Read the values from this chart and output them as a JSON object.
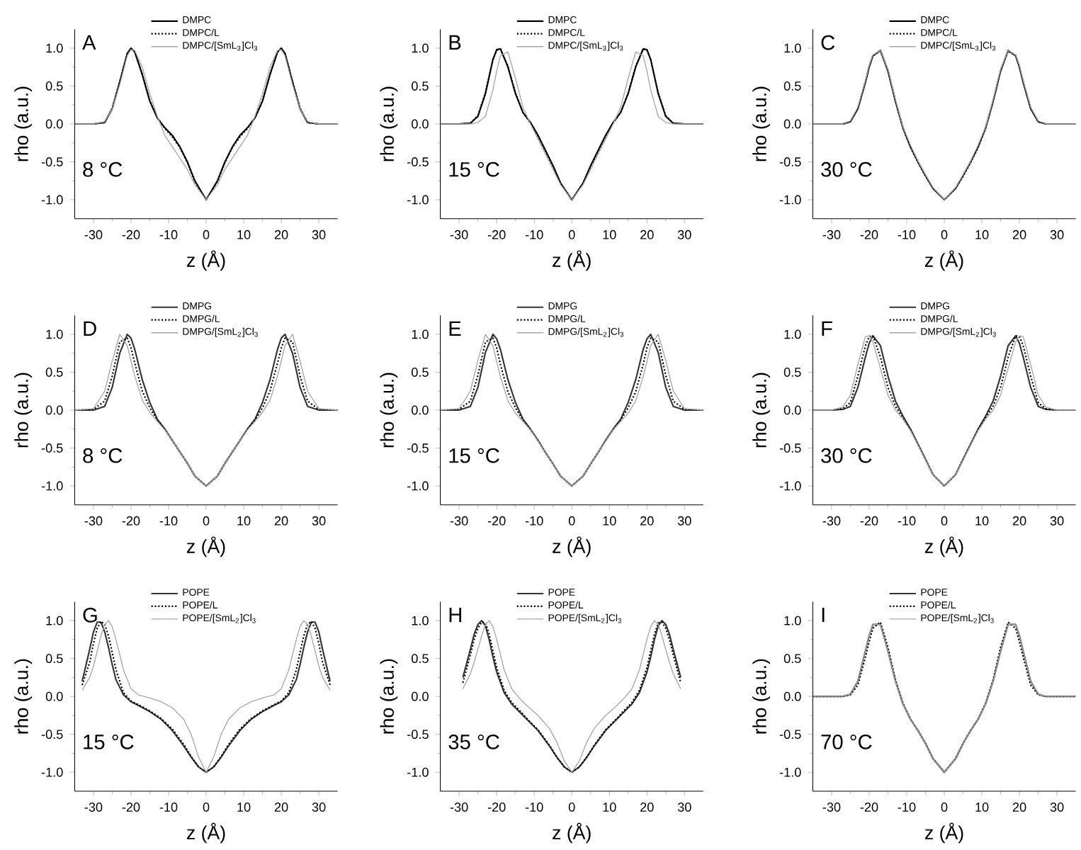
{
  "chart_data": [
    {
      "type": "line",
      "xlabel": "z (Å)",
      "ylabel": "rho (a.u.)",
      "annotations": [
        "A",
        "8 °C"
      ],
      "legend": "top",
      "xlim": [
        -35,
        35
      ],
      "ylim": [
        -1.25,
        1.25
      ],
      "xticks": [
        -30,
        -20,
        -10,
        0,
        10,
        20,
        30
      ],
      "yticks": [
        {
          "value": -1,
          "label": "-1.0"
        },
        {
          "value": -0.5,
          "label": "-0.5"
        },
        {
          "value": 0,
          "label": "0.0"
        },
        {
          "value": 0.5,
          "label": "0.5"
        },
        {
          "value": 1,
          "label": "1.0"
        }
      ],
      "x": [
        -35,
        -30,
        -27,
        -25,
        -23,
        -21,
        -20,
        -19,
        -17,
        -15,
        -13,
        -11,
        -9,
        -7,
        -5,
        -3,
        0,
        3,
        5,
        7,
        9,
        11,
        13,
        15,
        17,
        19,
        20,
        21,
        23,
        25,
        27,
        30,
        35
      ],
      "series": [
        {
          "name": "DMPC",
          "color": "#000000",
          "line_style": "solid",
          "values": [
            0,
            0,
            0.02,
            0.2,
            0.55,
            0.93,
            1.0,
            0.95,
            0.65,
            0.3,
            0.08,
            -0.05,
            -0.15,
            -0.3,
            -0.5,
            -0.75,
            -1.0,
            -0.75,
            -0.5,
            -0.3,
            -0.15,
            -0.05,
            0.08,
            0.3,
            0.65,
            0.95,
            1.0,
            0.93,
            0.55,
            0.2,
            0.02,
            0,
            0
          ]
        },
        {
          "name": "DMPC/L",
          "color": "#000000",
          "line_style": "dotted",
          "values": [
            0,
            0,
            0.02,
            0.21,
            0.56,
            0.93,
            0.99,
            0.95,
            0.66,
            0.31,
            0.08,
            -0.06,
            -0.17,
            -0.31,
            -0.51,
            -0.76,
            -1.0,
            -0.76,
            -0.51,
            -0.31,
            -0.17,
            -0.06,
            0.08,
            0.31,
            0.66,
            0.95,
            0.99,
            0.93,
            0.56,
            0.21,
            0.02,
            0,
            0
          ]
        },
        {
          "name": "DMPC/[SmL$_{3}$]Cl$_{3}$",
          "color": "#a6a6a6",
          "line_style": "solid",
          "values": [
            0,
            0,
            0.03,
            0.2,
            0.52,
            0.9,
            0.98,
            0.97,
            0.75,
            0.4,
            0.1,
            -0.15,
            -0.3,
            -0.45,
            -0.6,
            -0.8,
            -1.0,
            -0.8,
            -0.6,
            -0.45,
            -0.3,
            -0.15,
            0.1,
            0.4,
            0.75,
            0.97,
            0.98,
            0.9,
            0.52,
            0.2,
            0.03,
            0,
            0
          ]
        }
      ]
    },
    {
      "type": "line",
      "xlabel": "z (Å)",
      "ylabel": "rho (a.u.)",
      "annotations": [
        "B",
        "15 °C"
      ],
      "legend": "top",
      "xlim": [
        -35,
        35
      ],
      "ylim": [
        -1.25,
        1.25
      ],
      "xticks": [
        -30,
        -20,
        -10,
        0,
        10,
        20,
        30
      ],
      "yticks": [
        {
          "value": -1,
          "label": "-1.0"
        },
        {
          "value": -0.5,
          "label": "-0.5"
        },
        {
          "value": 0,
          "label": "0.0"
        },
        {
          "value": 0.5,
          "label": "0.5"
        },
        {
          "value": 1,
          "label": "1.0"
        }
      ],
      "x": [
        -35,
        -30,
        -27,
        -25,
        -23,
        -21,
        -20,
        -19,
        -17,
        -15,
        -13,
        -11,
        -9,
        -7,
        -5,
        -3,
        0,
        3,
        5,
        7,
        9,
        11,
        13,
        15,
        17,
        19,
        20,
        21,
        23,
        25,
        27,
        30,
        35
      ],
      "series": [
        {
          "name": "DMPC",
          "color": "#000000",
          "line_style": "solid",
          "values": [
            0,
            0,
            0.01,
            0.1,
            0.4,
            0.85,
            0.98,
            0.99,
            0.75,
            0.4,
            0.15,
            0.02,
            -0.15,
            -0.35,
            -0.55,
            -0.78,
            -1.0,
            -0.78,
            -0.55,
            -0.35,
            -0.15,
            0.02,
            0.15,
            0.4,
            0.75,
            0.99,
            0.98,
            0.85,
            0.4,
            0.1,
            0.01,
            0,
            0
          ]
        },
        {
          "name": "DMPC/L",
          "color": "#000000",
          "line_style": "dotted",
          "values": [
            0,
            0,
            0.01,
            0.11,
            0.41,
            0.85,
            0.97,
            0.99,
            0.76,
            0.41,
            0.15,
            0.01,
            -0.16,
            -0.36,
            -0.56,
            -0.78,
            -1.0,
            -0.78,
            -0.56,
            -0.36,
            -0.16,
            0.01,
            0.15,
            0.41,
            0.76,
            0.99,
            0.97,
            0.85,
            0.41,
            0.11,
            0.01,
            0,
            0
          ]
        },
        {
          "name": "DMPC/[SmL$_{3}$]Cl$_{3}$",
          "color": "#a6a6a6",
          "line_style": "solid",
          "values": [
            0,
            0,
            0,
            0.02,
            0.1,
            0.45,
            0.7,
            0.9,
            0.95,
            0.6,
            0.22,
            0.0,
            -0.2,
            -0.4,
            -0.6,
            -0.8,
            -1.0,
            -0.8,
            -0.6,
            -0.4,
            -0.2,
            0.0,
            0.22,
            0.6,
            0.95,
            0.9,
            0.7,
            0.45,
            0.1,
            0.02,
            0,
            0,
            0
          ]
        }
      ]
    },
    {
      "type": "line",
      "xlabel": "z (Å)",
      "ylabel": "rho (a.u.)",
      "annotations": [
        "C",
        "30 °C"
      ],
      "legend": "top",
      "xlim": [
        -35,
        35
      ],
      "ylim": [
        -1.25,
        1.25
      ],
      "xticks": [
        -30,
        -20,
        -10,
        0,
        10,
        20,
        30
      ],
      "yticks": [
        {
          "value": -1,
          "label": "-1.0"
        },
        {
          "value": -0.5,
          "label": "-0.5"
        },
        {
          "value": 0,
          "label": "0.0"
        },
        {
          "value": 0.5,
          "label": "0.5"
        },
        {
          "value": 1,
          "label": "1.0"
        }
      ],
      "x": [
        -35,
        -30,
        -27,
        -25,
        -23,
        -21,
        -20,
        -19,
        -17,
        -15,
        -13,
        -11,
        -9,
        -7,
        -5,
        -3,
        0,
        3,
        5,
        7,
        9,
        11,
        13,
        15,
        17,
        19,
        20,
        21,
        23,
        25,
        27,
        30,
        35
      ],
      "series": [
        {
          "name": "DMPC",
          "color": "#000000",
          "line_style": "solid",
          "values": [
            0,
            0,
            0,
            0.03,
            0.2,
            0.55,
            0.75,
            0.9,
            0.97,
            0.7,
            0.3,
            -0.05,
            -0.3,
            -0.5,
            -0.68,
            -0.85,
            -1.0,
            -0.85,
            -0.68,
            -0.5,
            -0.3,
            -0.05,
            0.3,
            0.7,
            0.97,
            0.9,
            0.75,
            0.55,
            0.2,
            0.03,
            0,
            0,
            0
          ]
        },
        {
          "name": "DMPC/L",
          "color": "#000000",
          "line_style": "dotted",
          "values": [
            0,
            0,
            0,
            0.03,
            0.21,
            0.56,
            0.76,
            0.9,
            0.96,
            0.71,
            0.3,
            -0.06,
            -0.31,
            -0.51,
            -0.69,
            -0.85,
            -1.0,
            -0.85,
            -0.69,
            -0.51,
            -0.31,
            -0.06,
            0.3,
            0.71,
            0.96,
            0.9,
            0.76,
            0.56,
            0.21,
            0.03,
            0,
            0,
            0
          ]
        },
        {
          "name": "DMPC/[SmL$_{3}$]Cl$_{3}$",
          "color": "#a6a6a6",
          "line_style": "solid",
          "values": [
            0,
            0,
            0,
            0.04,
            0.22,
            0.57,
            0.77,
            0.91,
            0.97,
            0.72,
            0.32,
            -0.04,
            -0.28,
            -0.49,
            -0.67,
            -0.84,
            -1.0,
            -0.84,
            -0.67,
            -0.49,
            -0.28,
            -0.04,
            0.32,
            0.72,
            0.97,
            0.91,
            0.77,
            0.57,
            0.22,
            0.04,
            0,
            0,
            0
          ]
        }
      ]
    },
    {
      "type": "line",
      "xlabel": "z (Å)",
      "ylabel": "rho (a.u.)",
      "annotations": [
        "D",
        "8 °C"
      ],
      "legend": "top",
      "xlim": [
        -35,
        35
      ],
      "ylim": [
        -1.25,
        1.25
      ],
      "xticks": [
        -30,
        -20,
        -10,
        0,
        10,
        20,
        30
      ],
      "yticks": [
        {
          "value": -1,
          "label": "-1.0"
        },
        {
          "value": -0.5,
          "label": "-0.5"
        },
        {
          "value": 0,
          "label": "0.0"
        },
        {
          "value": 0.5,
          "label": "0.5"
        },
        {
          "value": 1,
          "label": "1.0"
        }
      ],
      "x": [
        -35,
        -30,
        -27,
        -25,
        -23,
        -21,
        -20,
        -19,
        -17,
        -15,
        -13,
        -11,
        -9,
        -7,
        -5,
        -3,
        0,
        3,
        5,
        7,
        9,
        11,
        13,
        15,
        17,
        19,
        20,
        21,
        23,
        25,
        27,
        30,
        35
      ],
      "series": [
        {
          "name": "DMPG",
          "color": "#333333",
          "line_style": "solid",
          "values": [
            0,
            0,
            0.05,
            0.3,
            0.75,
            1.0,
            0.95,
            0.8,
            0.4,
            0.1,
            -0.12,
            -0.25,
            -0.4,
            -0.55,
            -0.7,
            -0.87,
            -1.0,
            -0.87,
            -0.7,
            -0.55,
            -0.4,
            -0.25,
            -0.12,
            0.1,
            0.4,
            0.8,
            0.95,
            1.0,
            0.75,
            0.3,
            0.05,
            0,
            0
          ]
        },
        {
          "name": "DMPG/L",
          "color": "#000000",
          "line_style": "dotted",
          "values": [
            0,
            0.01,
            0.12,
            0.45,
            0.9,
            0.95,
            0.82,
            0.62,
            0.25,
            0.03,
            -0.13,
            -0.25,
            -0.4,
            -0.55,
            -0.7,
            -0.87,
            -1.0,
            -0.87,
            -0.7,
            -0.55,
            -0.4,
            -0.25,
            -0.13,
            0.03,
            0.25,
            0.62,
            0.82,
            0.95,
            0.9,
            0.45,
            0.12,
            0.01,
            0
          ]
        },
        {
          "name": "DMPG/[SmL$_{2}$]Cl$_{3}$",
          "color": "#a6a6a6",
          "line_style": "solid",
          "values": [
            0,
            0.02,
            0.25,
            0.65,
            1.0,
            0.85,
            0.65,
            0.45,
            0.13,
            -0.03,
            -0.15,
            -0.26,
            -0.4,
            -0.55,
            -0.7,
            -0.87,
            -1.0,
            -0.87,
            -0.7,
            -0.55,
            -0.4,
            -0.26,
            -0.15,
            -0.03,
            0.13,
            0.45,
            0.65,
            0.85,
            1.0,
            0.65,
            0.25,
            0.02,
            0
          ]
        }
      ]
    },
    {
      "type": "line",
      "xlabel": "z (Å)",
      "ylabel": "rho (a.u.)",
      "annotations": [
        "E",
        "15 °C"
      ],
      "legend": "top",
      "xlim": [
        -35,
        35
      ],
      "ylim": [
        -1.25,
        1.25
      ],
      "xticks": [
        -30,
        -20,
        -10,
        0,
        10,
        20,
        30
      ],
      "yticks": [
        {
          "value": -1,
          "label": "-1.0"
        },
        {
          "value": -0.5,
          "label": "-0.5"
        },
        {
          "value": 0,
          "label": "0.0"
        },
        {
          "value": 0.5,
          "label": "0.5"
        },
        {
          "value": 1,
          "label": "1.0"
        }
      ],
      "x": [
        -35,
        -30,
        -27,
        -25,
        -23,
        -21,
        -20,
        -19,
        -17,
        -15,
        -13,
        -11,
        -9,
        -7,
        -5,
        -3,
        0,
        3,
        5,
        7,
        9,
        11,
        13,
        15,
        17,
        19,
        20,
        21,
        23,
        25,
        27,
        30,
        35
      ],
      "series": [
        {
          "name": "DMPG",
          "color": "#333333",
          "line_style": "solid",
          "values": [
            0,
            0,
            0.05,
            0.3,
            0.76,
            1.0,
            0.94,
            0.8,
            0.4,
            0.1,
            -0.12,
            -0.25,
            -0.4,
            -0.56,
            -0.71,
            -0.87,
            -1.0,
            -0.87,
            -0.71,
            -0.56,
            -0.4,
            -0.25,
            -0.12,
            0.1,
            0.4,
            0.8,
            0.94,
            1.0,
            0.76,
            0.3,
            0.05,
            0,
            0
          ]
        },
        {
          "name": "DMPG/L",
          "color": "#000000",
          "line_style": "dotted",
          "values": [
            0,
            0.01,
            0.12,
            0.46,
            0.9,
            0.95,
            0.82,
            0.6,
            0.24,
            0.03,
            -0.13,
            -0.26,
            -0.4,
            -0.56,
            -0.71,
            -0.87,
            -1.0,
            -0.87,
            -0.71,
            -0.56,
            -0.4,
            -0.26,
            -0.13,
            0.03,
            0.24,
            0.6,
            0.82,
            0.95,
            0.9,
            0.46,
            0.12,
            0.01,
            0
          ]
        },
        {
          "name": "DMPG/[SmL$_{2}$]Cl$_{3}$",
          "color": "#a6a6a6",
          "line_style": "solid",
          "values": [
            0,
            0.02,
            0.25,
            0.66,
            1.0,
            0.85,
            0.64,
            0.44,
            0.12,
            -0.04,
            -0.15,
            -0.26,
            -0.41,
            -0.56,
            -0.71,
            -0.87,
            -1.0,
            -0.87,
            -0.71,
            -0.56,
            -0.41,
            -0.26,
            -0.15,
            -0.04,
            0.12,
            0.44,
            0.64,
            0.85,
            1.0,
            0.66,
            0.25,
            0.02,
            0
          ]
        }
      ]
    },
    {
      "type": "line",
      "xlabel": "z (Å)",
      "ylabel": "rho (a.u.)",
      "annotations": [
        "F",
        "30 °C"
      ],
      "legend": "top",
      "xlim": [
        -35,
        35
      ],
      "ylim": [
        -1.25,
        1.25
      ],
      "xticks": [
        -30,
        -20,
        -10,
        0,
        10,
        20,
        30
      ],
      "yticks": [
        {
          "value": -1,
          "label": "-1.0"
        },
        {
          "value": -0.5,
          "label": "-0.5"
        },
        {
          "value": 0,
          "label": "0.0"
        },
        {
          "value": 0.5,
          "label": "0.5"
        },
        {
          "value": 1,
          "label": "1.0"
        }
      ],
      "x": [
        -35,
        -30,
        -27,
        -25,
        -23,
        -21,
        -20,
        -19,
        -17,
        -15,
        -13,
        -11,
        -9,
        -7,
        -5,
        -3,
        0,
        3,
        5,
        7,
        9,
        11,
        13,
        15,
        17,
        19,
        20,
        21,
        23,
        25,
        27,
        30,
        35
      ],
      "series": [
        {
          "name": "DMPG",
          "color": "#333333",
          "line_style": "solid",
          "values": [
            0,
            0,
            0.01,
            0.05,
            0.3,
            0.7,
            0.88,
            0.98,
            0.85,
            0.45,
            0.12,
            -0.08,
            -0.25,
            -0.45,
            -0.65,
            -0.85,
            -1.0,
            -0.85,
            -0.65,
            -0.45,
            -0.25,
            -0.08,
            0.12,
            0.45,
            0.85,
            0.98,
            0.88,
            0.7,
            0.3,
            0.05,
            0.01,
            0,
            0
          ]
        },
        {
          "name": "DMPG/L",
          "color": "#000000",
          "line_style": "dotted",
          "values": [
            0,
            0,
            0.02,
            0.1,
            0.45,
            0.85,
            0.97,
            0.98,
            0.7,
            0.3,
            0.05,
            -0.1,
            -0.26,
            -0.45,
            -0.65,
            -0.85,
            -1.0,
            -0.85,
            -0.65,
            -0.45,
            -0.26,
            -0.1,
            0.05,
            0.3,
            0.7,
            0.98,
            0.97,
            0.85,
            0.45,
            0.1,
            0.02,
            0,
            0
          ]
        },
        {
          "name": "DMPG/[SmL$_{2}$]Cl$_{3}$",
          "color": "#a6a6a6",
          "line_style": "solid",
          "values": [
            0,
            0,
            0.04,
            0.2,
            0.6,
            0.97,
            0.98,
            0.9,
            0.55,
            0.2,
            0.0,
            -0.12,
            -0.27,
            -0.46,
            -0.66,
            -0.85,
            -1.0,
            -0.85,
            -0.66,
            -0.46,
            -0.27,
            -0.12,
            0.0,
            0.2,
            0.55,
            0.9,
            0.98,
            0.97,
            0.6,
            0.2,
            0.04,
            0,
            0
          ]
        }
      ]
    },
    {
      "type": "line",
      "xlabel": "z (Å)",
      "ylabel": "rho (a.u.)",
      "annotations": [
        "G",
        "15 °C"
      ],
      "legend": "top",
      "xlim": [
        -35,
        35
      ],
      "ylim": [
        -1.25,
        1.25
      ],
      "xticks": [
        -30,
        -20,
        -10,
        0,
        10,
        20,
        30
      ],
      "yticks": [
        {
          "value": -1,
          "label": "-1.0"
        },
        {
          "value": -0.5,
          "label": "-0.5"
        },
        {
          "value": 0,
          "label": "0.0"
        },
        {
          "value": 0.5,
          "label": "0.5"
        },
        {
          "value": 1,
          "label": "1.0"
        }
      ],
      "x": [
        -33,
        -31,
        -30,
        -29,
        -28,
        -27,
        -26,
        -25,
        -24,
        -22,
        -20,
        -18,
        -15,
        -12,
        -9,
        -6,
        -4,
        -2,
        0,
        2,
        4,
        6,
        9,
        12,
        15,
        18,
        20,
        22,
        24,
        25,
        26,
        27,
        28,
        29,
        30,
        31,
        33
      ],
      "series": [
        {
          "name": "POPE",
          "color": "#333333",
          "line_style": "solid",
          "values": [
            0.2,
            0.62,
            0.85,
            0.98,
            0.98,
            0.85,
            0.65,
            0.42,
            0.22,
            0.02,
            -0.07,
            -0.12,
            -0.2,
            -0.3,
            -0.45,
            -0.65,
            -0.8,
            -0.93,
            -1.0,
            -0.93,
            -0.8,
            -0.65,
            -0.45,
            -0.3,
            -0.2,
            -0.12,
            -0.07,
            0.02,
            0.22,
            0.42,
            0.65,
            0.85,
            0.98,
            0.98,
            0.85,
            0.62,
            0.2
          ]
        },
        {
          "name": "POPE/L",
          "color": "#000000",
          "line_style": "dotted",
          "values": [
            0.15,
            0.45,
            0.7,
            0.9,
            0.99,
            0.95,
            0.8,
            0.58,
            0.35,
            0.05,
            -0.06,
            -0.11,
            -0.19,
            -0.29,
            -0.43,
            -0.63,
            -0.79,
            -0.93,
            -1.0,
            -0.93,
            -0.79,
            -0.63,
            -0.43,
            -0.29,
            -0.19,
            -0.11,
            -0.06,
            0.05,
            0.35,
            0.58,
            0.8,
            0.95,
            0.99,
            0.9,
            0.7,
            0.45,
            0.15
          ]
        },
        {
          "name": "POPE/[SmL$_{2}$]Cl$_{3}$",
          "color": "#a6a6a6",
          "line_style": "solid",
          "values": [
            0.08,
            0.25,
            0.4,
            0.6,
            0.8,
            0.95,
            1.0,
            0.92,
            0.75,
            0.35,
            0.1,
            0.02,
            -0.02,
            -0.07,
            -0.15,
            -0.3,
            -0.5,
            -0.8,
            -1.0,
            -0.8,
            -0.5,
            -0.3,
            -0.15,
            -0.07,
            -0.02,
            0.02,
            0.1,
            0.35,
            0.75,
            0.92,
            1.0,
            0.95,
            0.8,
            0.6,
            0.4,
            0.25,
            0.08
          ]
        }
      ]
    },
    {
      "type": "line",
      "xlabel": "z (Å)",
      "ylabel": "rho (a.u.)",
      "annotations": [
        "H",
        "35 °C"
      ],
      "legend": "top",
      "xlim": [
        -35,
        35
      ],
      "ylim": [
        -1.25,
        1.25
      ],
      "xticks": [
        -30,
        -20,
        -10,
        0,
        10,
        20,
        30
      ],
      "yticks": [
        {
          "value": -1,
          "label": "-1.0"
        },
        {
          "value": -0.5,
          "label": "-0.5"
        },
        {
          "value": 0,
          "label": "0.0"
        },
        {
          "value": 0.5,
          "label": "0.5"
        },
        {
          "value": 1,
          "label": "1.0"
        }
      ],
      "x": [
        -29,
        -27,
        -26,
        -25,
        -24,
        -23,
        -22,
        -21,
        -20,
        -18,
        -16,
        -14,
        -12,
        -9,
        -6,
        -4,
        -2,
        0,
        2,
        4,
        6,
        9,
        12,
        14,
        16,
        18,
        20,
        21,
        22,
        23,
        24,
        25,
        26,
        27,
        29
      ],
      "series": [
        {
          "name": "POPE",
          "color": "#333333",
          "line_style": "solid",
          "values": [
            0.25,
            0.62,
            0.82,
            0.95,
            1.0,
            0.93,
            0.75,
            0.52,
            0.32,
            0.05,
            -0.1,
            -0.2,
            -0.3,
            -0.45,
            -0.65,
            -0.8,
            -0.93,
            -1.0,
            -0.93,
            -0.8,
            -0.65,
            -0.45,
            -0.3,
            -0.2,
            -0.1,
            0.05,
            0.32,
            0.52,
            0.75,
            0.93,
            1.0,
            0.95,
            0.82,
            0.62,
            0.25
          ]
        },
        {
          "name": "POPE/L",
          "color": "#000000",
          "line_style": "dotted",
          "values": [
            0.18,
            0.55,
            0.75,
            0.9,
            0.98,
            0.97,
            0.82,
            0.6,
            0.38,
            0.08,
            -0.08,
            -0.18,
            -0.29,
            -0.44,
            -0.64,
            -0.8,
            -0.93,
            -1.0,
            -0.93,
            -0.8,
            -0.64,
            -0.44,
            -0.29,
            -0.18,
            -0.08,
            0.08,
            0.38,
            0.6,
            0.82,
            0.97,
            0.98,
            0.9,
            0.75,
            0.55,
            0.18
          ]
        },
        {
          "name": "POPE/[SmL$_{2}$]Cl$_{3}$",
          "color": "#a6a6a6",
          "line_style": "solid",
          "values": [
            0.1,
            0.3,
            0.45,
            0.62,
            0.8,
            0.95,
            1.0,
            0.92,
            0.75,
            0.35,
            0.1,
            -0.02,
            -0.12,
            -0.25,
            -0.42,
            -0.6,
            -0.85,
            -1.0,
            -0.85,
            -0.6,
            -0.42,
            -0.25,
            -0.12,
            -0.02,
            0.1,
            0.35,
            0.75,
            0.92,
            1.0,
            0.95,
            0.8,
            0.62,
            0.45,
            0.3,
            0.1
          ]
        }
      ]
    },
    {
      "type": "line",
      "xlabel": "z (Å)",
      "ylabel": "rho (a.u.)",
      "annotations": [
        "I",
        "70 °C"
      ],
      "legend": "top",
      "xlim": [
        -35,
        35
      ],
      "ylim": [
        -1.25,
        1.25
      ],
      "xticks": [
        -30,
        -20,
        -10,
        0,
        10,
        20,
        30
      ],
      "yticks": [
        {
          "value": -1,
          "label": "-1.0"
        },
        {
          "value": -0.5,
          "label": "-0.5"
        },
        {
          "value": 0,
          "label": "0.0"
        },
        {
          "value": 0.5,
          "label": "0.5"
        },
        {
          "value": 1,
          "label": "1.0"
        }
      ],
      "x": [
        -35,
        -30,
        -27,
        -25,
        -23,
        -21,
        -20,
        -19,
        -17,
        -15,
        -13,
        -11,
        -9,
        -7,
        -5,
        -3,
        0,
        3,
        5,
        7,
        9,
        11,
        13,
        15,
        17,
        19,
        20,
        21,
        23,
        25,
        27,
        30,
        35
      ],
      "series": [
        {
          "name": "POPE",
          "color": "#333333",
          "line_style": "solid",
          "values": [
            0,
            0,
            0,
            0.03,
            0.2,
            0.6,
            0.8,
            0.95,
            0.95,
            0.6,
            0.2,
            -0.1,
            -0.3,
            -0.45,
            -0.62,
            -0.82,
            -1.0,
            -0.82,
            -0.62,
            -0.45,
            -0.3,
            -0.1,
            0.2,
            0.6,
            0.95,
            0.95,
            0.8,
            0.6,
            0.2,
            0.03,
            0,
            0,
            0
          ]
        },
        {
          "name": "POPE/L",
          "color": "#000000",
          "line_style": "dotted",
          "values": [
            0,
            0,
            0,
            0.02,
            0.15,
            0.52,
            0.72,
            0.9,
            0.98,
            0.65,
            0.22,
            -0.09,
            -0.3,
            -0.45,
            -0.62,
            -0.82,
            -1.0,
            -0.82,
            -0.62,
            -0.45,
            -0.3,
            -0.09,
            0.22,
            0.65,
            0.98,
            0.9,
            0.72,
            0.52,
            0.15,
            0.02,
            0,
            0,
            0
          ]
        },
        {
          "name": "POPE/[SmL$_{2}$]Cl$_{3}$",
          "color": "#a6a6a6",
          "line_style": "solid",
          "values": [
            0,
            0,
            0,
            0.03,
            0.2,
            0.6,
            0.8,
            0.95,
            0.95,
            0.6,
            0.2,
            -0.1,
            -0.3,
            -0.45,
            -0.62,
            -0.82,
            -1.0,
            -0.82,
            -0.62,
            -0.45,
            -0.3,
            -0.1,
            0.2,
            0.6,
            0.95,
            0.95,
            0.8,
            0.6,
            0.2,
            0.03,
            0,
            0,
            0
          ]
        }
      ]
    }
  ]
}
